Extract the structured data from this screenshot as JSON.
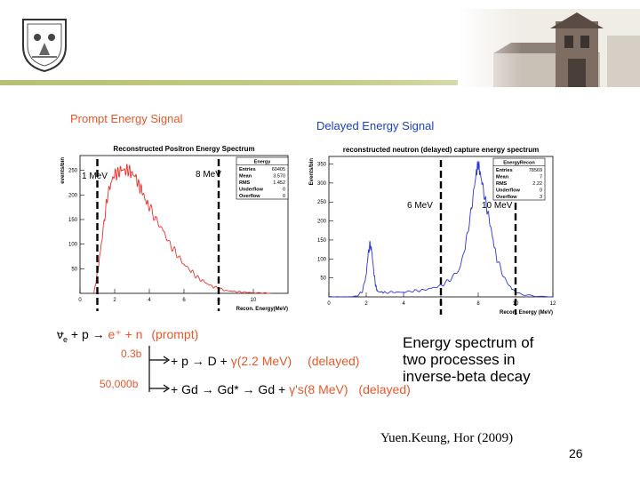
{
  "header": {
    "logo_label": "university-seal",
    "photo_label": "campus-building-photo"
  },
  "prompt": {
    "label": "Prompt Energy Signal",
    "line_labels": [
      "1 MeV",
      "8 MeV"
    ],
    "chart_data": {
      "type": "line",
      "title": "Reconstructed Positron Energy Spectrum",
      "xlabel": "Recon. Energy(MeV)",
      "ylabel": "events/bin",
      "xlim": [
        0,
        12
      ],
      "ylim": [
        0,
        280
      ],
      "xticks": [
        0,
        2,
        4,
        6,
        8,
        10
      ],
      "yticks": [
        50,
        100,
        150,
        200,
        250
      ],
      "series": [
        {
          "name": "Energy",
          "x": [
            0.8,
            1.0,
            1.2,
            1.4,
            1.6,
            1.8,
            2.0,
            2.2,
            2.4,
            2.6,
            2.8,
            3.0,
            3.2,
            3.4,
            3.6,
            3.8,
            4.0,
            4.4,
            4.8,
            5.2,
            5.6,
            6.0,
            6.4,
            6.8,
            7.2,
            7.6,
            8.0,
            8.4,
            8.8,
            9.2,
            9.6,
            10.0,
            10.5,
            11.0
          ],
          "y": [
            0,
            40,
            90,
            150,
            200,
            228,
            240,
            245,
            250,
            252,
            250,
            245,
            235,
            220,
            205,
            190,
            175,
            150,
            125,
            100,
            78,
            60,
            45,
            32,
            22,
            15,
            10,
            6,
            4,
            3,
            2,
            1,
            1,
            0
          ]
        }
      ],
      "vlines": [
        1,
        8
      ],
      "stats": {
        "name": "Energy",
        "rows": [
          [
            "Entries",
            "60405"
          ],
          [
            "Mean",
            "3.570"
          ],
          [
            "RMS",
            "1.452"
          ],
          [
            "Underflow",
            "0"
          ],
          [
            "Overflow",
            "0"
          ]
        ]
      }
    }
  },
  "delayed": {
    "label": "Delayed Energy Signal",
    "line_labels": [
      "6 MeV",
      "10 MeV"
    ],
    "chart_data": {
      "type": "line",
      "title": "reconstructed neutron (delayed) capture energy spectrum",
      "xlabel": "Recon. Energy (MeV)",
      "ylabel": "Events/bin",
      "xlim": [
        0,
        12
      ],
      "ylim": [
        0,
        370
      ],
      "xticks": [
        0,
        2,
        4,
        6,
        8,
        10,
        12
      ],
      "yticks": [
        50,
        100,
        150,
        200,
        250,
        300,
        350
      ],
      "series": [
        {
          "name": "EnergyRecon",
          "x": [
            0.0,
            0.5,
            1.0,
            1.5,
            1.8,
            2.0,
            2.1,
            2.2,
            2.3,
            2.4,
            2.5,
            2.6,
            2.8,
            3.0,
            3.5,
            4.0,
            4.5,
            5.0,
            5.5,
            6.0,
            6.5,
            7.0,
            7.3,
            7.6,
            7.8,
            7.9,
            8.0,
            8.1,
            8.2,
            8.4,
            8.6,
            8.8,
            9.0,
            9.4,
            9.8,
            10.2,
            11.0,
            12.0
          ],
          "y": [
            0,
            0,
            0,
            2,
            15,
            60,
            110,
            140,
            118,
            70,
            30,
            15,
            12,
            12,
            12,
            13,
            15,
            18,
            22,
            30,
            45,
            75,
            130,
            220,
            290,
            330,
            350,
            330,
            300,
            250,
            200,
            150,
            100,
            50,
            20,
            8,
            2,
            0
          ]
        }
      ],
      "vlines": [
        6,
        10
      ],
      "stats": {
        "name": "EnergyRecon",
        "rows": [
          [
            "Entries",
            "78569"
          ],
          [
            "Mean",
            "7"
          ],
          [
            "RMS",
            "2.22"
          ],
          [
            "Underflow",
            "0"
          ],
          [
            "Overflow",
            "3"
          ]
        ]
      }
    }
  },
  "equations": {
    "nu": "ν",
    "nu_sub": "e",
    "main_rest": "+ p → ",
    "main_positron": "e⁺ + n",
    "main_prompt": "(prompt)",
    "cs1": "0.3b",
    "cs2": "50,000b",
    "proc1_black": "+ p → D + ",
    "proc1_orange": "γ(2.2 MeV)",
    "proc1_delayed": "(delayed)",
    "proc2_black": "+ Gd → Gd* → Gd + ",
    "proc2_orange": "γ's(8 MeV)",
    "proc2_delayed": "(delayed)"
  },
  "caption": [
    "Energy spectrum of",
    "two processes in",
    "inverse-beta decay"
  ],
  "credit": "Yuen.Keung, Hor (2009)",
  "page_number": "26",
  "colors": {
    "prompt_line": "#e8322b",
    "delayed_line": "#2b35d8",
    "label_orange": "#e6582b",
    "label_blue": "#1b41c4"
  }
}
